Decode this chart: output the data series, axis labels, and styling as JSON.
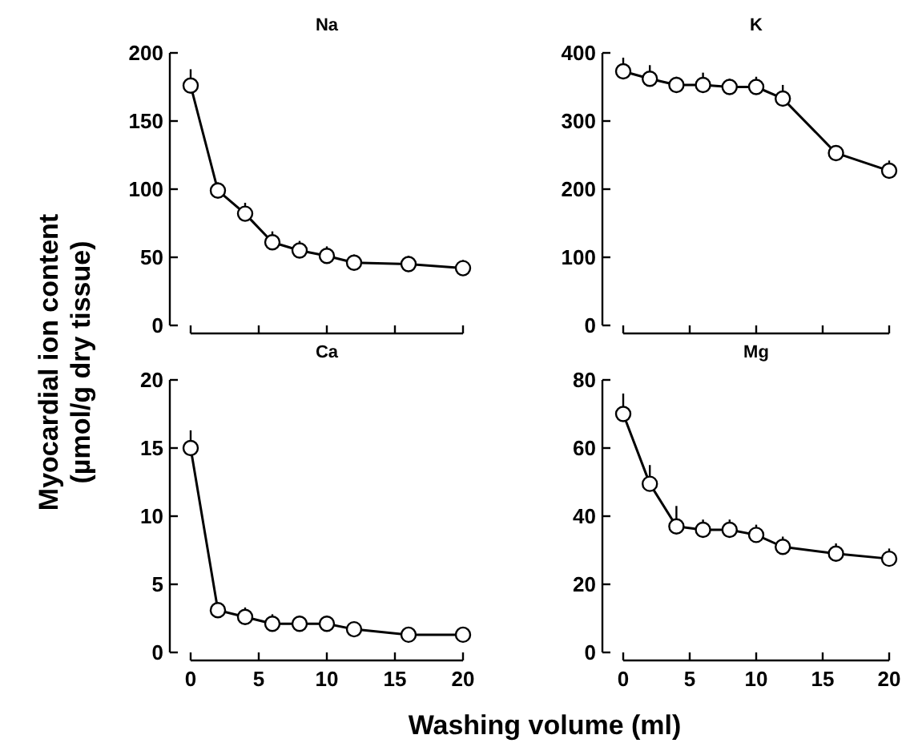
{
  "chart_data": [
    {
      "type": "line",
      "title": "Na",
      "ylabel": "Myocardial ion content\n(µmol/g dry tissue)",
      "x": [
        0,
        2,
        4,
        6,
        8,
        10,
        12,
        16,
        20
      ],
      "xlim": [
        0,
        20
      ],
      "xticks": [
        0,
        5,
        10,
        15,
        20
      ],
      "ylim": [
        0,
        200
      ],
      "yticks": [
        0,
        50,
        100,
        150,
        200
      ],
      "tick_labels": "y",
      "marker": "circle",
      "series": [
        {
          "color": "#000000",
          "values": [
            176,
            99,
            82,
            61,
            55,
            51,
            46,
            45,
            42
          ],
          "errors": [
            [
              176,
              188
            ],
            [
              99,
              105
            ],
            [
              82,
              90
            ],
            [
              61,
              69
            ],
            [
              55,
              62
            ],
            [
              51,
              58
            ],
            [
              46,
              52
            ],
            [
              45,
              51
            ],
            [
              42,
              48
            ]
          ]
        }
      ]
    },
    {
      "type": "line",
      "title": "K",
      "x": [
        0,
        2,
        4,
        6,
        8,
        10,
        12,
        16,
        20
      ],
      "xlim": [
        0,
        20
      ],
      "xticks": [
        0,
        5,
        10,
        15,
        20
      ],
      "ylim": [
        0,
        400
      ],
      "yticks": [
        0,
        100,
        200,
        300,
        400
      ],
      "tick_labels": "y",
      "marker": "circle",
      "series": [
        {
          "color": "#000000",
          "values": [
            373,
            362,
            353,
            353,
            350,
            350,
            333,
            253,
            227
          ],
          "errors": [
            [
              373,
              393
            ],
            [
              362,
              382
            ],
            [
              353,
              365
            ],
            [
              353,
              371
            ],
            [
              350,
              362
            ],
            [
              350,
              365
            ],
            [
              333,
              353
            ],
            [
              253,
              263
            ],
            [
              227,
              242
            ]
          ]
        }
      ]
    },
    {
      "type": "line",
      "title": "Ca",
      "xlabel": "Washing volume (ml)",
      "x": [
        0,
        2,
        4,
        6,
        8,
        10,
        12,
        16,
        20
      ],
      "xlim": [
        0,
        20
      ],
      "xticks": [
        0,
        5,
        10,
        15,
        20
      ],
      "ylim": [
        0,
        20
      ],
      "yticks": [
        0,
        5,
        10,
        15,
        20
      ],
      "marker": "circle",
      "series": [
        {
          "color": "#000000",
          "values": [
            15,
            3.1,
            2.6,
            2.1,
            2.1,
            2.1,
            1.7,
            1.3,
            1.3
          ],
          "errors": [
            [
              15,
              16.3
            ],
            [
              3.1,
              3.5
            ],
            [
              2.6,
              3.3
            ],
            [
              2.1,
              2.8
            ],
            [
              2.1,
              2.7
            ],
            [
              2.1,
              2.7
            ],
            [
              1.7,
              2.1
            ],
            [
              1.3,
              1.8
            ],
            [
              1.3,
              1.8
            ]
          ]
        }
      ]
    },
    {
      "type": "line",
      "title": "Mg",
      "x": [
        0,
        2,
        4,
        6,
        8,
        10,
        12,
        16,
        20
      ],
      "xlim": [
        0,
        20
      ],
      "xticks": [
        0,
        5,
        10,
        15,
        20
      ],
      "ylim": [
        0,
        80
      ],
      "yticks": [
        0,
        20,
        40,
        60,
        80
      ],
      "marker": "circle",
      "series": [
        {
          "color": "#000000",
          "values": [
            70,
            49.5,
            37,
            36,
            36,
            34.5,
            31,
            29,
            27.5
          ],
          "errors": [
            [
              70,
              76
            ],
            [
              49.5,
              55
            ],
            [
              37,
              43
            ],
            [
              36,
              39
            ],
            [
              36,
              39
            ],
            [
              34.5,
              37.5
            ],
            [
              31,
              34
            ],
            [
              29,
              32
            ],
            [
              27.5,
              30.5
            ]
          ]
        }
      ]
    }
  ]
}
